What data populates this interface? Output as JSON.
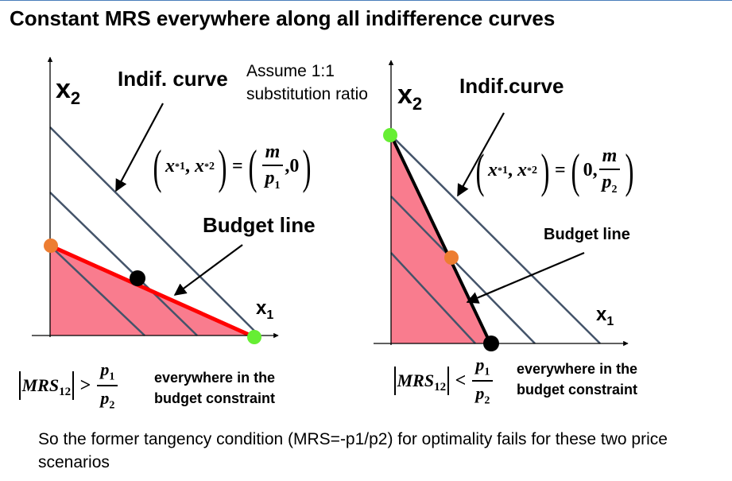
{
  "title": "Constant MRS everywhere along all indifference curves",
  "colors": {
    "budget_fill": "#f97c8e",
    "budget_line": "#ff0000",
    "indifference_line": "#44546a",
    "black_dot": "#000000",
    "orange_dot": "#ed7d31",
    "green_dot": "#66ee33",
    "arrow": "#000000"
  },
  "left_panel": {
    "axis_y_label": "x",
    "axis_y_sub": "2",
    "axis_x_label": "x",
    "axis_x_sub": "1",
    "indif_label": "Indif. curve",
    "assume_line1": "Assume 1:1",
    "assume_line2": "substitution ratio",
    "optimum": {
      "lhs_a": "x",
      "lhs_b": "x",
      "rhs_num": "m",
      "rhs_den": "p",
      "rhs_den_sub": "1",
      "rhs_second": "0"
    },
    "budget_label": "Budget line",
    "condition": {
      "lhs": "MRS",
      "lhs_sub": "12",
      "op": ">",
      "num": "p",
      "num_sub": "1",
      "den": "p",
      "den_sub": "2"
    },
    "condition_text_line1": "everywhere in the",
    "condition_text_line2": "budget constraint"
  },
  "right_panel": {
    "axis_y_label": "x",
    "axis_y_sub": "2",
    "axis_x_label": "x",
    "axis_x_sub": "1",
    "indif_label": "Indif.curve",
    "optimum": {
      "lhs_a": "x",
      "lhs_b": "x",
      "rhs_first": "0",
      "rhs_num": "m",
      "rhs_den": "p",
      "rhs_den_sub": "2"
    },
    "budget_label": "Budget line",
    "condition": {
      "lhs": "MRS",
      "lhs_sub": "12",
      "op": "<",
      "num": "p",
      "num_sub": "1",
      "den": "p",
      "den_sub": "2"
    },
    "condition_text_line1": "everywhere in the",
    "condition_text_line2": "budget constraint"
  },
  "footer": "So the former tangency condition (MRS=-p1/p2) for optimality fails for these two price scenarios"
}
